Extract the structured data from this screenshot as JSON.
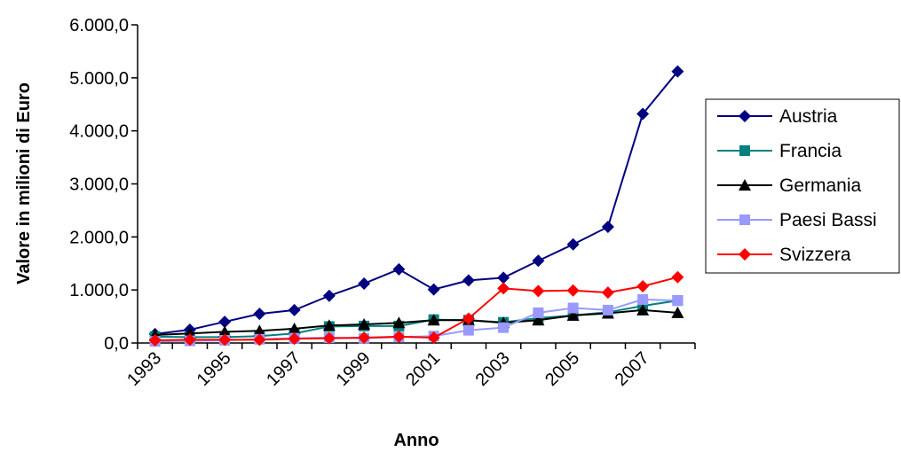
{
  "chart_data": {
    "type": "line",
    "xlabel": "Anno",
    "ylabel": "Valore in milioni di Euro",
    "ylim": [
      0,
      6000
    ],
    "y_ticks": [
      {
        "value": 0,
        "label": "0,0"
      },
      {
        "value": 1000,
        "label": "1.000,0"
      },
      {
        "value": 2000,
        "label": "2.000,0"
      },
      {
        "value": 3000,
        "label": "3.000,0"
      },
      {
        "value": 4000,
        "label": "4.000,0"
      },
      {
        "value": 5000,
        "label": "5.000,0"
      },
      {
        "value": 6000,
        "label": "6.000,0"
      }
    ],
    "x": [
      1993,
      1994,
      1995,
      1996,
      1997,
      1998,
      1999,
      2000,
      2001,
      2002,
      2003,
      2004,
      2005,
      2006,
      2007,
      2008
    ],
    "x_tick_labels": [
      "1993",
      "1995",
      "1997",
      "1999",
      "2001",
      "2003",
      "2005",
      "2007"
    ],
    "x_tick_years": [
      1993,
      1995,
      1997,
      1999,
      2001,
      2003,
      2005,
      2007
    ],
    "grid": false,
    "legend_position": "right",
    "series": [
      {
        "name": "Austria",
        "color": "#000080",
        "marker": "diamond",
        "values": [
          170,
          250,
          400,
          550,
          620,
          890,
          1120,
          1390,
          1010,
          1180,
          1230,
          1550,
          1860,
          2190,
          4320,
          5120
        ]
      },
      {
        "name": "Francia",
        "color": "#008080",
        "marker": "square",
        "values": [
          120,
          110,
          110,
          130,
          180,
          310,
          320,
          320,
          440,
          430,
          390,
          470,
          520,
          580,
          700,
          800
        ]
      },
      {
        "name": "Germania",
        "color": "#000000",
        "marker": "triangle",
        "values": [
          150,
          180,
          210,
          230,
          270,
          330,
          350,
          380,
          430,
          430,
          380,
          430,
          520,
          560,
          620,
          570
        ]
      },
      {
        "name": "Paesi Bassi",
        "color": "#9999ff",
        "marker": "square",
        "values": [
          30,
          40,
          50,
          70,
          90,
          100,
          90,
          110,
          130,
          240,
          290,
          570,
          660,
          620,
          820,
          800
        ]
      },
      {
        "name": "Svizzera",
        "color": "#ff0000",
        "marker": "diamond",
        "values": [
          50,
          60,
          60,
          60,
          80,
          90,
          100,
          120,
          100,
          460,
          1030,
          980,
          990,
          950,
          1070,
          1240
        ]
      }
    ]
  }
}
